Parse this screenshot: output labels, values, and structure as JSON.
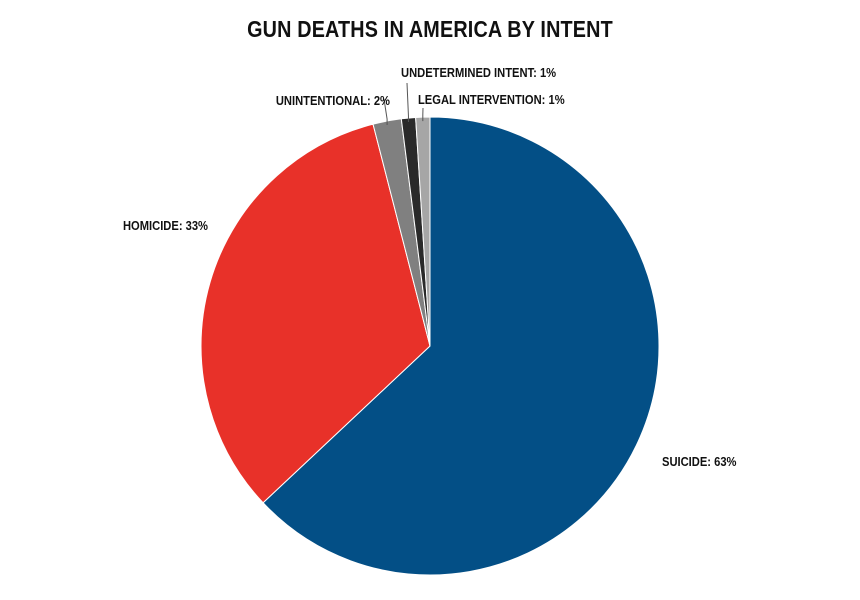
{
  "chart_data": {
    "type": "pie",
    "title": "GUN DEATHS IN AMERICA BY INTENT",
    "slices": [
      {
        "label": "SUICIDE: 63%",
        "value": 63,
        "color": "#034f86"
      },
      {
        "label": "HOMICIDE: 33%",
        "value": 33,
        "color": "#e83129"
      },
      {
        "label": "UNINTENTIONAL: 2%",
        "value": 2,
        "color": "#808080"
      },
      {
        "label": "UNDETERMINED INTENT: 1%",
        "value": 1,
        "color": "#2a2a2a"
      },
      {
        "label": "LEGAL INTERVENTION: 1%",
        "value": 1,
        "color": "#a6a6a6"
      }
    ]
  }
}
